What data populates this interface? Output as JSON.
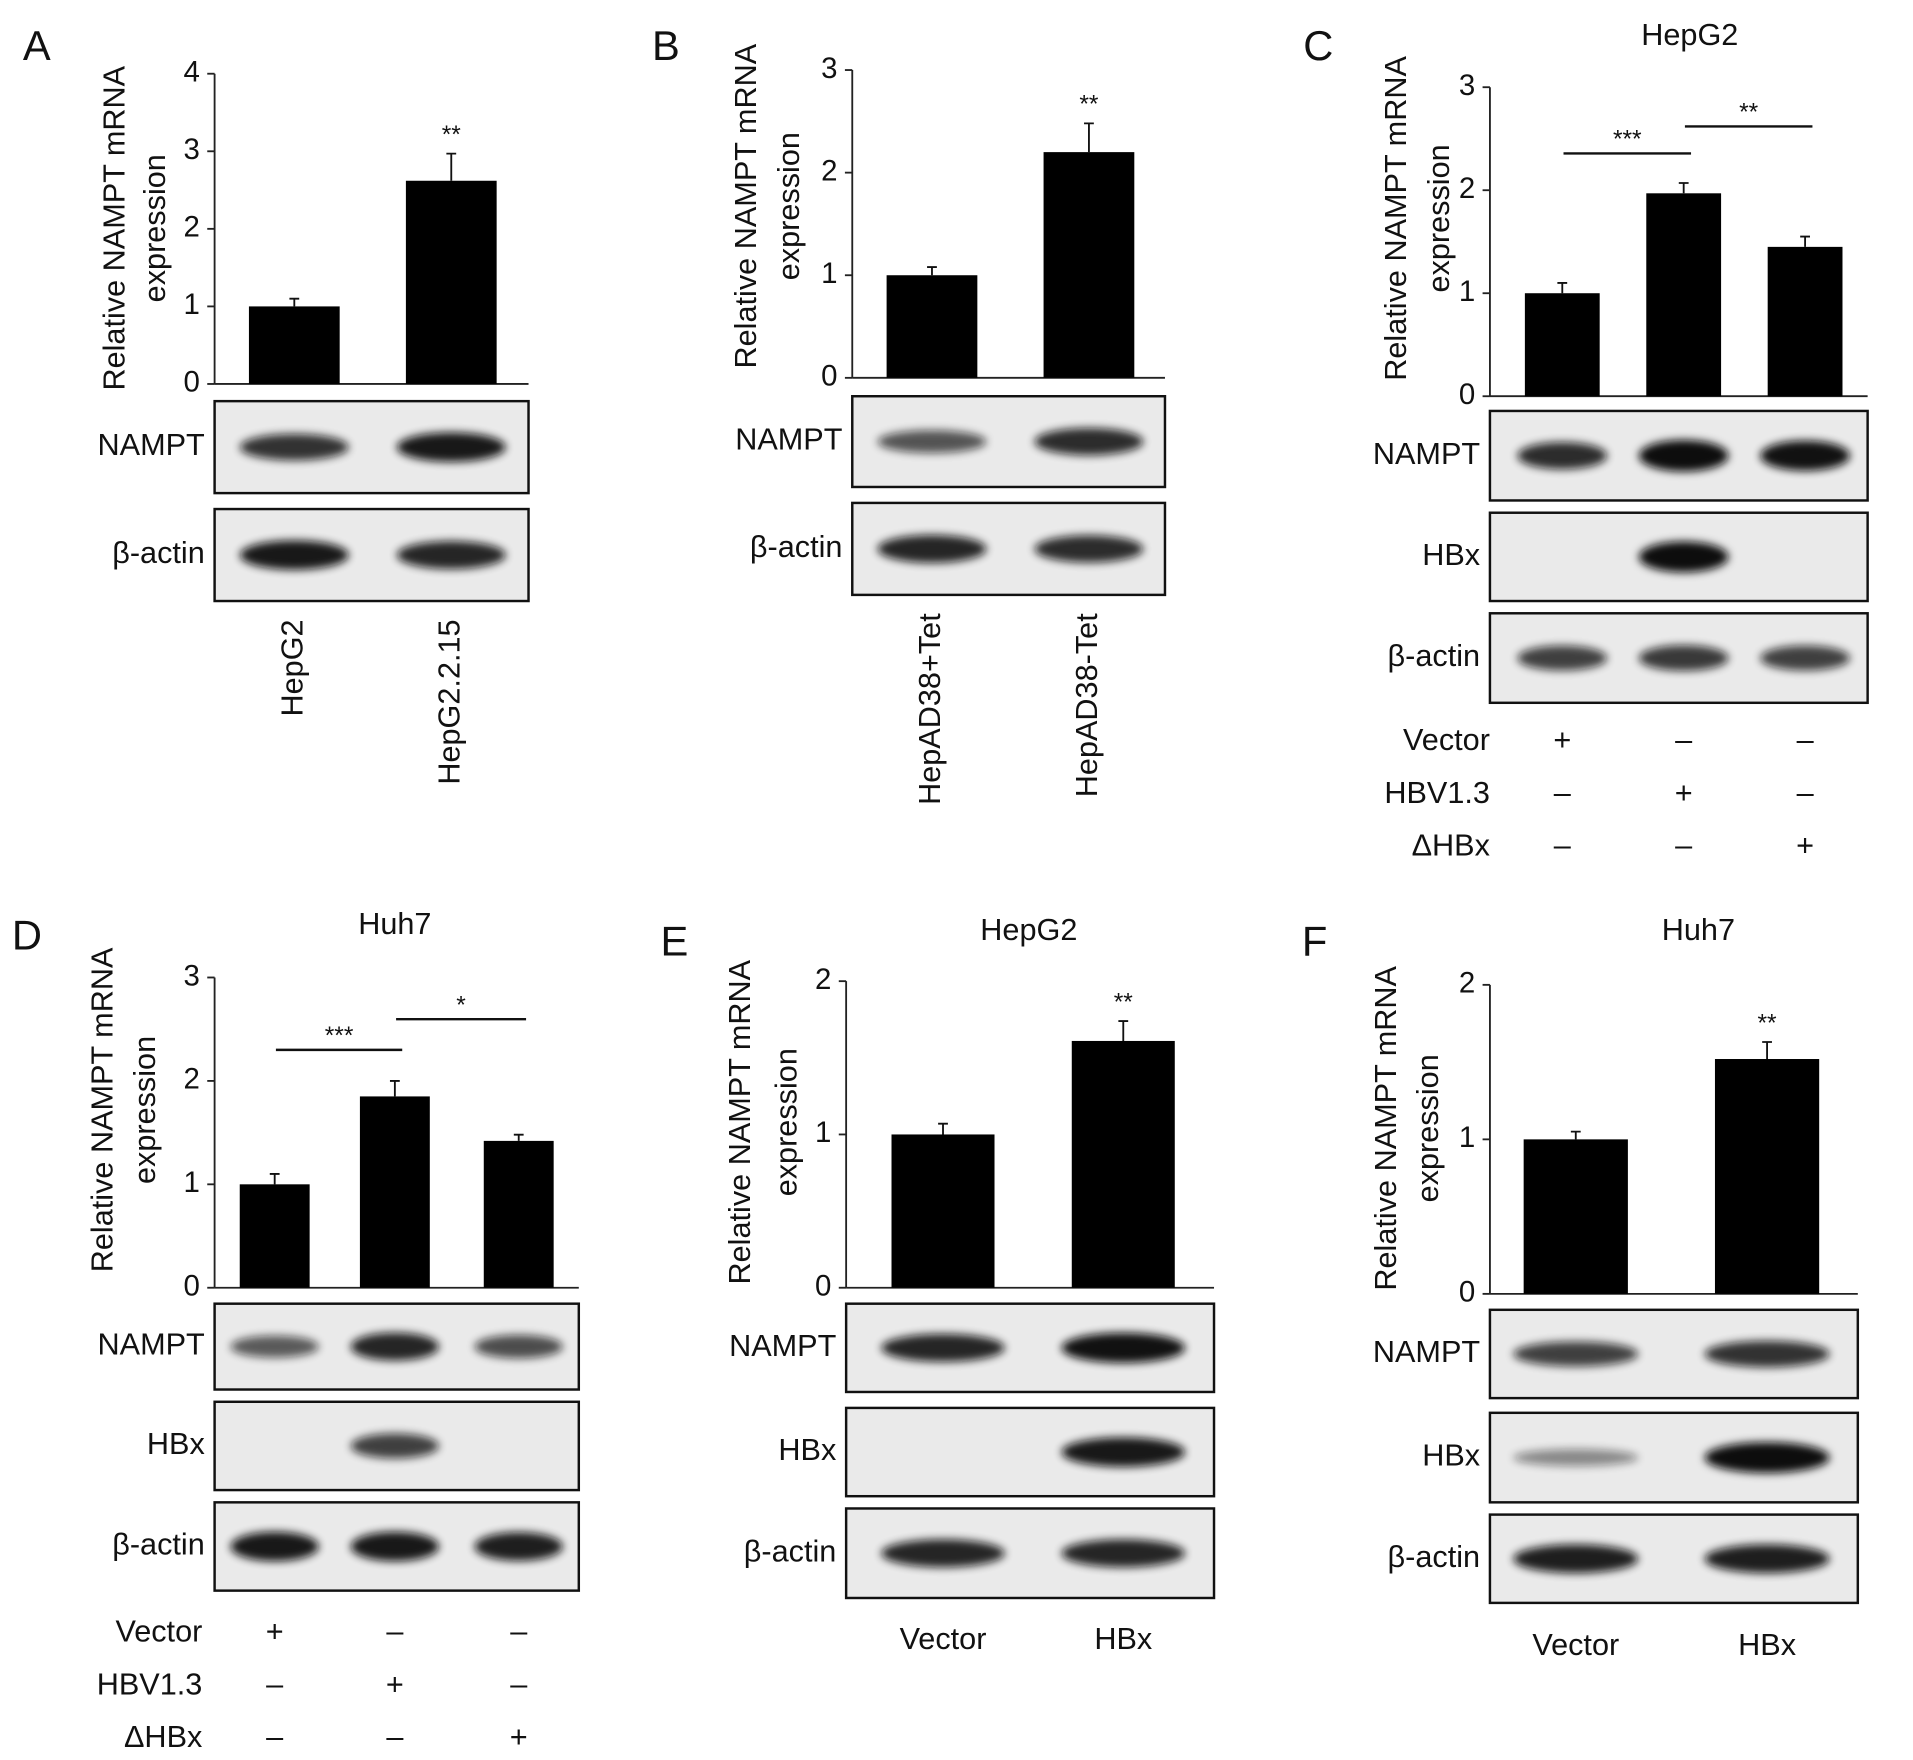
{
  "chart_data": [
    {
      "type": "bar",
      "panel": "A",
      "y_label": [
        "Relative NAMPT mRNA",
        "expression"
      ],
      "categories": [
        "HepG2",
        "HepG2.2.15"
      ],
      "values": [
        1,
        2.62
      ],
      "errors": [
        0.1,
        0.35
      ],
      "annotations": [
        null,
        "**"
      ],
      "ylim": [
        0,
        4
      ],
      "yticks": [
        0,
        1,
        2,
        3,
        4
      ],
      "color": "#000000",
      "blots": [
        "NAMPT",
        "β-actin"
      ]
    },
    {
      "type": "bar",
      "panel": "B",
      "y_label": [
        "Relative NAMPT mRNA",
        "expression"
      ],
      "categories": [
        "HepAD38+Tet",
        "HepAD38-Tet"
      ],
      "values": [
        1,
        2.2
      ],
      "errors": [
        0.08,
        0.28
      ],
      "annotations": [
        null,
        "**"
      ],
      "ylim": [
        0,
        3
      ],
      "yticks": [
        0,
        1,
        2,
        3
      ],
      "color": "#000000",
      "blots": [
        "NAMPT",
        "β-actin"
      ]
    },
    {
      "type": "bar",
      "panel": "C",
      "title": "HepG2",
      "y_label": [
        "Relative NAMPT mRNA",
        "expression"
      ],
      "values": [
        1,
        1.97,
        1.45
      ],
      "errors": [
        0.1,
        0.1,
        0.1
      ],
      "comparisons": [
        {
          "bars": [
            0,
            1
          ],
          "label": "***"
        },
        {
          "bars": [
            1,
            2
          ],
          "label": "**"
        }
      ],
      "ylim": [
        0,
        3
      ],
      "yticks": [
        0,
        1,
        2,
        3
      ],
      "color": "#000000",
      "blots": [
        "NAMPT",
        "HBx",
        "β-actin"
      ],
      "treatments": [
        {
          "name": "Vector",
          "signs": [
            "+",
            "–",
            "–"
          ]
        },
        {
          "name": "HBV1.3",
          "signs": [
            "–",
            "+",
            "–"
          ]
        },
        {
          "name": "ΔHBx",
          "signs": [
            "–",
            "–",
            "+"
          ]
        }
      ]
    },
    {
      "type": "bar",
      "panel": "D",
      "title": "Huh7",
      "y_label": [
        "Relative NAMPT mRNA",
        "expression"
      ],
      "values": [
        1,
        1.85,
        1.42
      ],
      "errors": [
        0.1,
        0.15,
        0.06
      ],
      "comparisons": [
        {
          "bars": [
            0,
            1
          ],
          "label": "***"
        },
        {
          "bars": [
            1,
            2
          ],
          "label": "*"
        }
      ],
      "ylim": [
        0,
        3
      ],
      "yticks": [
        0,
        1,
        2,
        3
      ],
      "color": "#000000",
      "blots": [
        "NAMPT",
        "HBx",
        "β-actin"
      ],
      "treatments": [
        {
          "name": "Vector",
          "signs": [
            "+",
            "–",
            "–"
          ]
        },
        {
          "name": "HBV1.3",
          "signs": [
            "–",
            "+",
            "–"
          ]
        },
        {
          "name": "ΔHBx",
          "signs": [
            "–",
            "–",
            "+"
          ]
        }
      ]
    },
    {
      "type": "bar",
      "panel": "E",
      "title": "HepG2",
      "y_label": [
        "Relative NAMPT mRNA",
        "expression"
      ],
      "categories": [
        "Vector",
        "HBx"
      ],
      "values": [
        1,
        1.61
      ],
      "errors": [
        0.07,
        0.13
      ],
      "annotations": [
        null,
        "**"
      ],
      "ylim": [
        0,
        2
      ],
      "yticks": [
        0,
        1,
        2
      ],
      "color": "#000000",
      "blots": [
        "NAMPT",
        "HBx",
        "β-actin"
      ]
    },
    {
      "type": "bar",
      "panel": "F",
      "title": "Huh7",
      "y_label": [
        "Relative NAMPT mRNA",
        "expression"
      ],
      "categories": [
        "Vector",
        "HBx"
      ],
      "values": [
        1,
        1.52
      ],
      "errors": [
        0.05,
        0.11
      ],
      "annotations": [
        null,
        "**"
      ],
      "ylim": [
        0,
        2
      ],
      "yticks": [
        0,
        1,
        2
      ],
      "color": "#000000",
      "blots": [
        "NAMPT",
        "HBx",
        "β-actin"
      ]
    }
  ]
}
